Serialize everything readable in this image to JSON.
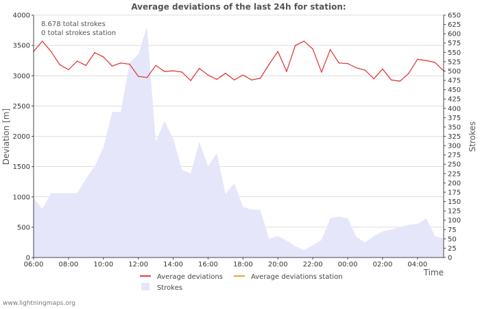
{
  "footer": "www.lightningmaps.org",
  "chart_data": {
    "type": "line",
    "title": "Average deviations of the last 24h for station:",
    "xlabel": "Time",
    "ylabel": "Deviation  [m]",
    "y2label": "Strokes",
    "ylim": [
      0,
      4000
    ],
    "y2lim": [
      0,
      650
    ],
    "y_ticks": [
      "0",
      "500",
      "1000",
      "1500",
      "2000",
      "2500",
      "3000",
      "3500",
      "4000"
    ],
    "y2_ticks": [
      "0",
      "25",
      "50",
      "75",
      "100",
      "125",
      "150",
      "175",
      "200",
      "225",
      "250",
      "275",
      "300",
      "325",
      "350",
      "375",
      "400",
      "425",
      "450",
      "475",
      "500",
      "525",
      "550",
      "575",
      "600",
      "625",
      "650"
    ],
    "x_ticks": [
      "06:00",
      "08:00",
      "10:00",
      "12:00",
      "14:00",
      "16:00",
      "18:00",
      "20:00",
      "22:00",
      "00:00",
      "02:00",
      "04:00"
    ],
    "annotations": [
      "8.678 total strokes",
      "0 total strokes station"
    ],
    "legend": {
      "avg": "Average deviations",
      "avg_station": "Average deviations station",
      "strokes": "Strokes"
    },
    "colors": {
      "avg": "#e03c3c",
      "avg_station": "#f0a030",
      "strokes_fill": "#e6e6fb",
      "strokes_stroke": "#d0d0f0",
      "grid": "#bbbbbb"
    },
    "x_hours": [
      0,
      0.5,
      1,
      1.5,
      2,
      2.5,
      3,
      3.5,
      4,
      4.5,
      5,
      5.5,
      6,
      6.5,
      7,
      7.5,
      8,
      8.5,
      9,
      9.5,
      10,
      10.5,
      11,
      11.5,
      12,
      12.5,
      13,
      13.5,
      14,
      14.5,
      15,
      15.5,
      16,
      16.5,
      17,
      17.5,
      18,
      18.5,
      19,
      19.5,
      20,
      20.5,
      21,
      21.5,
      22,
      22.5,
      23,
      23.5
    ],
    "series": [
      {
        "name": "Average deviations",
        "axis": "left",
        "values": [
          3400,
          3570,
          3400,
          3180,
          3100,
          3240,
          3170,
          3380,
          3310,
          3160,
          3210,
          3190,
          2990,
          2970,
          3170,
          3070,
          3080,
          3060,
          2920,
          3120,
          3010,
          2940,
          3040,
          2930,
          3010,
          2930,
          2960,
          3190,
          3400,
          3070,
          3500,
          3570,
          3440,
          3060,
          3430,
          3210,
          3200,
          3130,
          3090,
          2950,
          3110,
          2930,
          2910,
          3040,
          3270,
          3250,
          3220,
          3080
        ]
      },
      {
        "name": "Strokes",
        "axis": "right",
        "values": [
          160,
          130,
          173,
          172,
          172,
          173,
          211,
          245,
          295,
          390,
          391,
          522,
          545,
          619,
          310,
          366,
          320,
          235,
          225,
          310,
          245,
          280,
          170,
          200,
          135,
          129,
          127,
          50,
          58,
          45,
          30,
          20,
          33,
          47,
          105,
          110,
          105,
          55,
          40,
          57,
          70,
          75,
          82,
          88,
          90,
          105,
          58,
          50
        ]
      }
    ]
  }
}
